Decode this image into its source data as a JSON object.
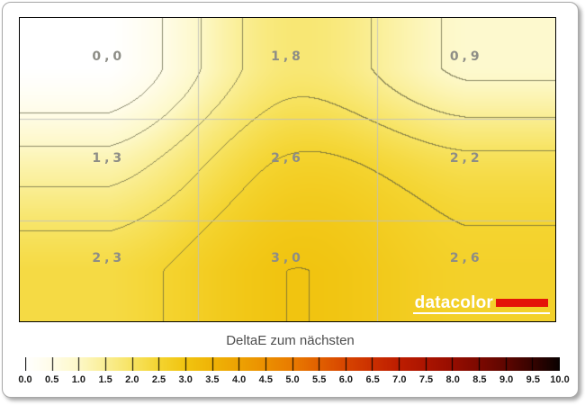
{
  "chart_data": {
    "type": "heatmap",
    "subtype": "contour-uniformity-map",
    "title": "DeltaE zum nächsten",
    "rows": 3,
    "cols": 3,
    "values": [
      [
        0.0,
        1.8,
        0.9
      ],
      [
        1.3,
        2.6,
        2.2
      ],
      [
        2.3,
        3.0,
        2.6
      ]
    ],
    "cell_labels": [
      "0,0",
      "1,8",
      "0,9",
      "1,3",
      "2,6",
      "2,2",
      "2,3",
      "3,0",
      "2,6"
    ],
    "contour_interval": 0.5,
    "value_label_color": "#8d8d86",
    "grid_line_color": "#bfbfbc",
    "contour_line_rgb": [
      92,
      92,
      60
    ],
    "plot_border_color": "#000000",
    "colormap": [
      {
        "v": 0.0,
        "rgb": [
          255,
          255,
          255
        ]
      },
      {
        "v": 0.5,
        "rgb": [
          255,
          252,
          232
        ]
      },
      {
        "v": 1.0,
        "rgb": [
          253,
          248,
          199
        ]
      },
      {
        "v": 1.5,
        "rgb": [
          250,
          238,
          148
        ]
      },
      {
        "v": 2.0,
        "rgb": [
          247,
          227,
          97
        ]
      },
      {
        "v": 2.5,
        "rgb": [
          244,
          212,
          48
        ]
      },
      {
        "v": 3.0,
        "rgb": [
          241,
          196,
          16
        ]
      },
      {
        "v": 3.5,
        "rgb": [
          239,
          179,
          6
        ]
      },
      {
        "v": 4.0,
        "rgb": [
          237,
          162,
          2
        ]
      },
      {
        "v": 4.5,
        "rgb": [
          235,
          143,
          0
        ]
      },
      {
        "v": 5.0,
        "rgb": [
          233,
          123,
          0
        ]
      },
      {
        "v": 5.5,
        "rgb": [
          225,
          96,
          0
        ]
      },
      {
        "v": 6.0,
        "rgb": [
          215,
          69,
          0
        ]
      },
      {
        "v": 6.5,
        "rgb": [
          203,
          47,
          0
        ]
      },
      {
        "v": 7.0,
        "rgb": [
          189,
          29,
          0
        ]
      },
      {
        "v": 7.5,
        "rgb": [
          171,
          20,
          0
        ]
      },
      {
        "v": 8.0,
        "rgb": [
          150,
          13,
          0
        ]
      },
      {
        "v": 8.5,
        "rgb": [
          124,
          9,
          0
        ]
      },
      {
        "v": 9.0,
        "rgb": [
          94,
          6,
          0
        ]
      },
      {
        "v": 9.5,
        "rgb": [
          54,
          3,
          0
        ]
      },
      {
        "v": 10.0,
        "rgb": [
          10,
          1,
          0
        ]
      }
    ],
    "colorbar": {
      "min": 0,
      "max": 10,
      "tick_step": 0.5,
      "tick_labels": [
        "0.0",
        "0.5",
        "1.0",
        "1.5",
        "2.0",
        "2.5",
        "3.0",
        "3.5",
        "4.0",
        "4.5",
        "5.0",
        "5.5",
        "6.0",
        "6.5",
        "7.0",
        "7.5",
        "8.0",
        "8.5",
        "9.0",
        "9.5",
        "10.0"
      ]
    }
  },
  "logo": {
    "text": "datacolor",
    "text_color": "#ffffff",
    "accent_color": "#e41408"
  }
}
